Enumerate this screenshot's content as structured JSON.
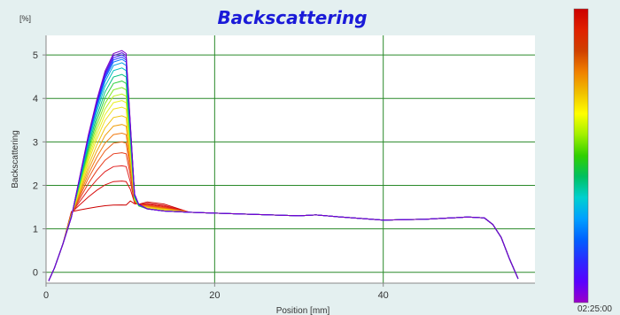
{
  "chart_data": {
    "type": "line",
    "title": "Backscattering",
    "title_color": "#1a1ad8",
    "xlabel": "Position [mm]",
    "ylabel": "Backscattering",
    "yunit": "[%]",
    "xlim": [
      0,
      58
    ],
    "ylim": [
      -0.25,
      5.45
    ],
    "xticks": [
      0,
      20,
      40
    ],
    "yticks": [
      0,
      1,
      2,
      3,
      4,
      5
    ],
    "grid": true,
    "grid_color": "#2a8a2a",
    "plot_background": "#ffffff",
    "time_scale": {
      "label": "02:25:00",
      "position": "right",
      "colors_bottom_to_top": [
        "#9a00c8",
        "#5a00ff",
        "#2a2aff",
        "#0060ff",
        "#00a0ff",
        "#00d0d0",
        "#00c060",
        "#30d000",
        "#a0f000",
        "#ffff00",
        "#f0c000",
        "#f08000",
        "#d04000",
        "#e02000",
        "#cc0000"
      ]
    },
    "curve_shape": {
      "x": [
        0.3,
        1.0,
        2.0,
        3.0,
        4.0,
        5.0,
        6.0,
        7.0,
        8.0,
        9.0,
        9.5,
        10.0,
        10.5,
        11.0,
        12.0,
        14.0,
        17.0,
        20.0,
        25.0,
        30.0,
        32.0,
        35.0,
        40.0,
        45.0,
        50.0,
        52.0,
        53.0,
        54.0,
        55.0,
        56.0
      ],
      "y": [
        -0.2,
        0.1,
        0.65,
        1.3,
        2.0,
        2.7,
        3.3,
        3.8,
        4.1,
        4.15,
        4.1,
        2.9,
        1.7,
        1.52,
        1.46,
        1.41,
        1.38,
        1.36,
        1.33,
        1.3,
        1.32,
        1.27,
        1.2,
        1.22,
        1.27,
        1.25,
        1.1,
        0.8,
        0.3,
        -0.15
      ]
    },
    "series_peaks": [
      1.55,
      2.1,
      2.45,
      2.75,
      3.0,
      3.2,
      3.4,
      3.6,
      3.8,
      3.95,
      4.1,
      4.25,
      4.4,
      4.55,
      4.7,
      4.82,
      4.9,
      4.95,
      5.0,
      5.05,
      5.1
    ],
    "series_colors": [
      "#cc0000",
      "#d81010",
      "#e02020",
      "#e63a1a",
      "#ec5a14",
      "#f07a10",
      "#f0a010",
      "#f0c410",
      "#f0e020",
      "#e8f020",
      "#c0f020",
      "#80e820",
      "#30d040",
      "#00c080",
      "#00c0c0",
      "#00a0e0",
      "#0070ff",
      "#2040ff",
      "#3a20ff",
      "#5a10e0",
      "#7a00c8"
    ]
  }
}
